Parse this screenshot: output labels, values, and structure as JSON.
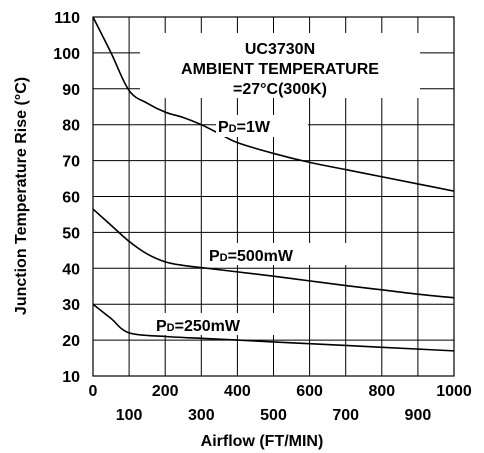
{
  "chart_data": {
    "type": "line",
    "title": {
      "line1": "UC3730N",
      "line2": "AMBIENT  TEMPERATURE",
      "line3": "=27°C(300K)"
    },
    "xlabel": "Airflow  (FT/MIN)",
    "ylabel": "Junction  Temperature  Rise  (°C)",
    "xlim": [
      0,
      1000
    ],
    "ylim": [
      10,
      110
    ],
    "x_ticks_top_row": [
      "0",
      "200",
      "400",
      "600",
      "800",
      "1000"
    ],
    "x_ticks_bottom_row": [
      "100",
      "300",
      "500",
      "700",
      "900"
    ],
    "y_ticks": [
      "10",
      "20",
      "30",
      "40",
      "50",
      "60",
      "70",
      "80",
      "90",
      "100",
      "110"
    ],
    "grid": true,
    "series": [
      {
        "label_prefix": "P",
        "label_sub": "D",
        "label_suffix": "=1W",
        "x": [
          0,
          50,
          100,
          150,
          200,
          250,
          300,
          350,
          400,
          500,
          600,
          700,
          800,
          900,
          1000
        ],
        "y": [
          110,
          100,
          89.5,
          86,
          83.5,
          82,
          80,
          77.5,
          75,
          72,
          69.5,
          67.5,
          65.5,
          63.5,
          61.5
        ]
      },
      {
        "label_prefix": "P",
        "label_sub": "D",
        "label_suffix": "=500mW",
        "x": [
          0,
          50,
          100,
          150,
          200,
          250,
          300,
          400,
          500,
          600,
          700,
          800,
          900,
          1000
        ],
        "y": [
          56.5,
          52,
          47.5,
          44,
          41.8,
          40.8,
          40.2,
          39,
          37.8,
          36.5,
          35.2,
          34,
          32.8,
          31.8
        ]
      },
      {
        "label_prefix": "P",
        "label_sub": "D",
        "label_suffix": "=250mW",
        "x": [
          0,
          50,
          100,
          200,
          300,
          400,
          500,
          600,
          700,
          800,
          900,
          1000
        ],
        "y": [
          30,
          26,
          22,
          21,
          20.5,
          20,
          19.5,
          19,
          18.5,
          18,
          17.5,
          17
        ]
      }
    ]
  }
}
